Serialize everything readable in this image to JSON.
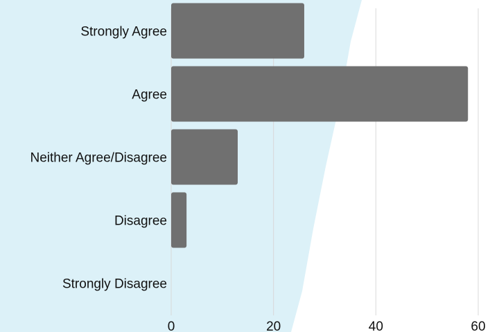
{
  "chart_data": {
    "type": "bar",
    "orientation": "horizontal",
    "categories": [
      "Strongly Agree",
      "Agree",
      "Neither Agree/Disagree",
      "Disagree",
      "Strongly Disagree"
    ],
    "values": [
      26,
      58,
      13,
      3,
      0
    ],
    "xlim": [
      0,
      60
    ],
    "x_ticks": [
      "0",
      "20",
      "40",
      "60"
    ],
    "grid": "vertical",
    "title": "",
    "xlabel": "",
    "ylabel": "",
    "colors": {
      "bar": "#707070",
      "background_band": "#dcf1f8",
      "gridline": "#d9d9d9"
    }
  }
}
